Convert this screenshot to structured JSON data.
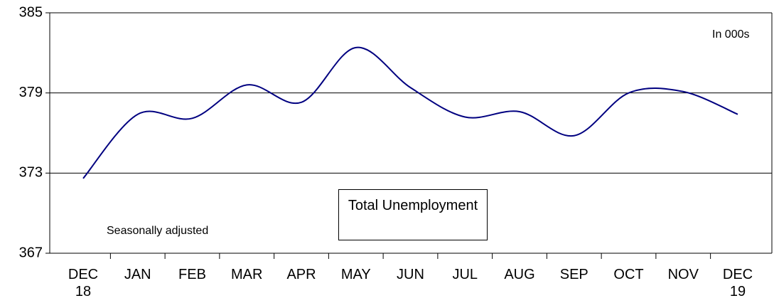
{
  "chart_data": {
    "type": "line",
    "title": "Total Unemployment",
    "annotations": [
      "In 000s",
      "Seasonally adjusted"
    ],
    "categories": [
      "DEC 18",
      "JAN",
      "FEB",
      "MAR",
      "APR",
      "MAY",
      "JUN",
      "JUL",
      "AUG",
      "SEP",
      "OCT",
      "NOV",
      "DEC 19"
    ],
    "series": [
      {
        "name": "Total Unemployment",
        "color": "#000080",
        "values": [
          372.6,
          377.4,
          377.1,
          379.6,
          378.3,
          382.4,
          379.4,
          377.2,
          377.6,
          375.8,
          379.0,
          379.1,
          377.4
        ]
      }
    ],
    "ylim": [
      367,
      385
    ],
    "yticks": [
      367,
      373,
      379,
      385
    ],
    "grid": true
  }
}
